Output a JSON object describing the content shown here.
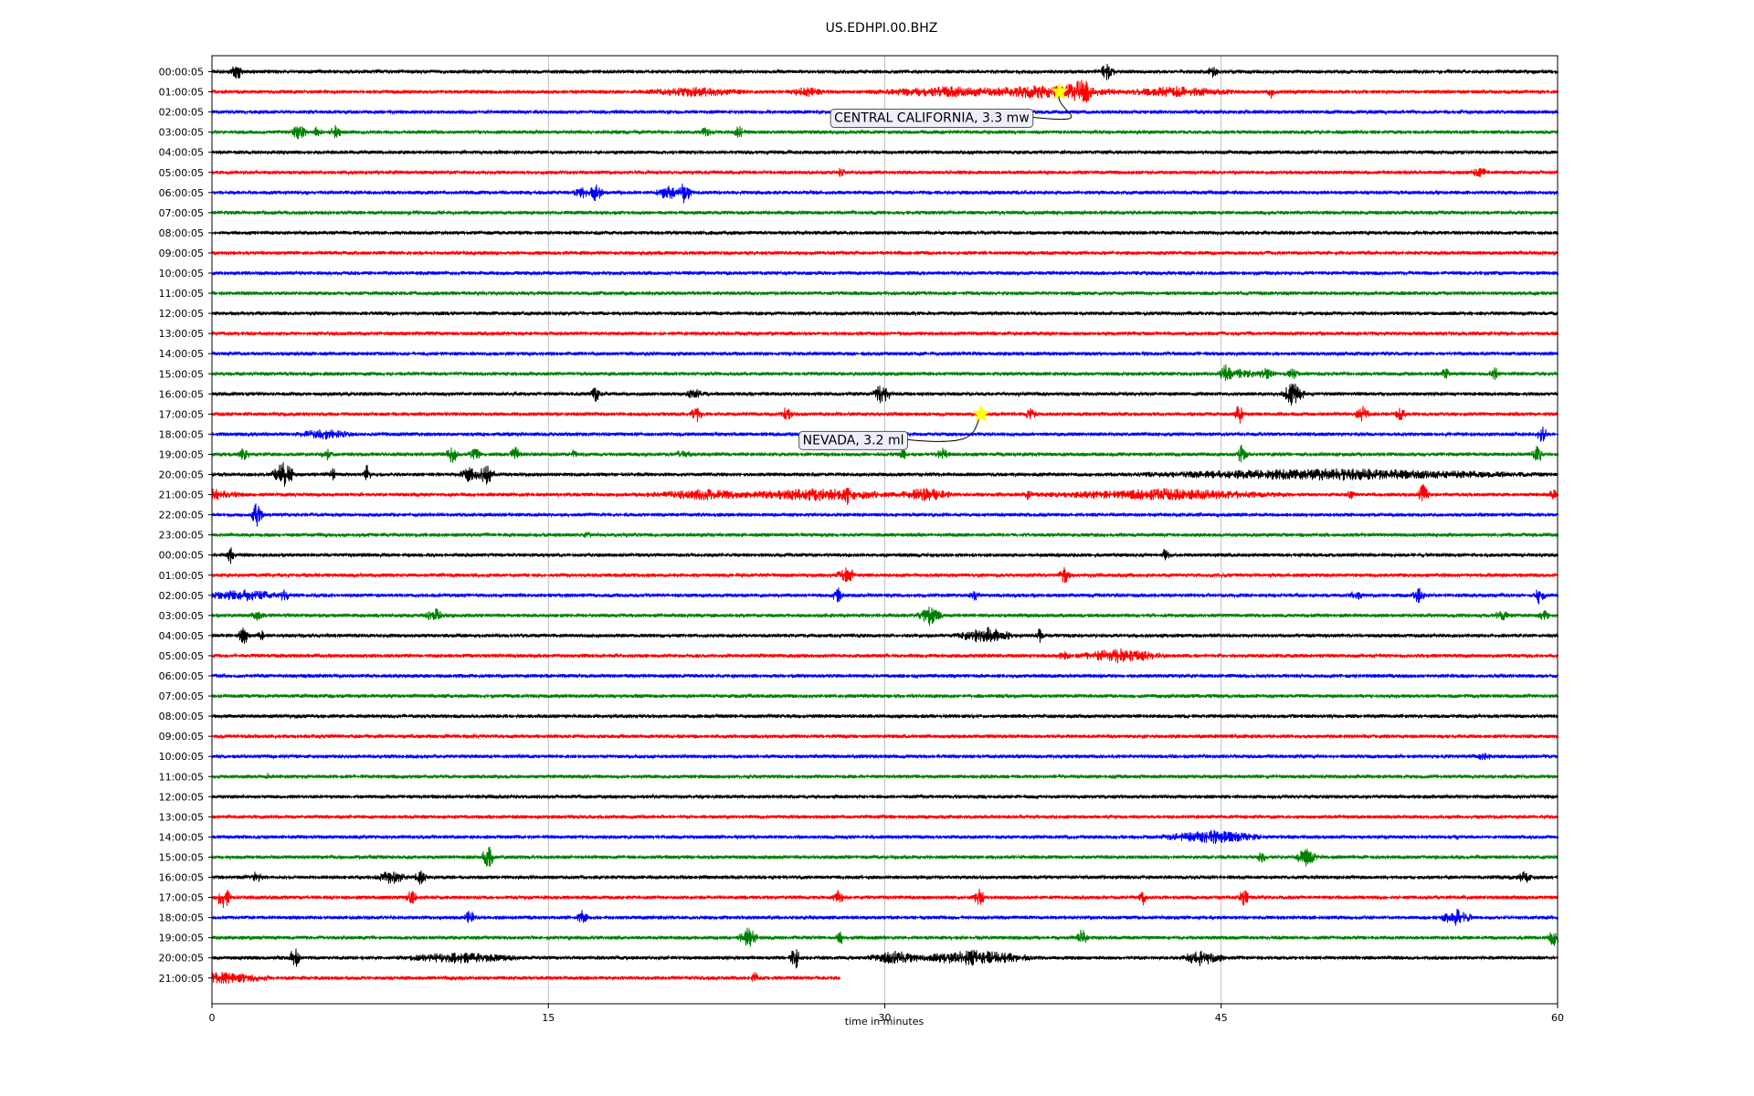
{
  "chart_data": {
    "type": "line",
    "title": "US.EDHPI.00.BHZ",
    "xlabel": "time in minutes",
    "xlim": [
      0,
      60
    ],
    "xticks": [
      0,
      15,
      30,
      45,
      60
    ],
    "grid": "vertical at major ticks",
    "trace_colors": [
      "#000000",
      "#ff0000",
      "#0000ff",
      "#008000"
    ],
    "row_labels": [
      "00:00:05",
      "01:00:05",
      "02:00:05",
      "03:00:05",
      "04:00:05",
      "05:00:05",
      "06:00:05",
      "07:00:05",
      "08:00:05",
      "09:00:05",
      "10:00:05",
      "11:00:05",
      "12:00:05",
      "13:00:05",
      "14:00:05",
      "15:00:05",
      "16:00:05",
      "17:00:05",
      "18:00:05",
      "19:00:05",
      "20:00:05",
      "21:00:05",
      "22:00:05",
      "23:00:05",
      "00:00:05",
      "01:00:05",
      "02:00:05",
      "03:00:05",
      "04:00:05",
      "05:00:05",
      "06:00:05",
      "07:00:05",
      "08:00:05",
      "09:00:05",
      "10:00:05",
      "11:00:05",
      "12:00:05",
      "13:00:05",
      "14:00:05",
      "15:00:05",
      "16:00:05",
      "17:00:05",
      "18:00:05",
      "19:00:05",
      "20:00:05",
      "21:00:05"
    ],
    "last_row_end_minute": 28,
    "events": [
      {
        "label": "CENTRAL CALIFORNIA, 3.3 mw",
        "row": 1,
        "minute": 37.8,
        "marker_color": "#ffff00"
      },
      {
        "label": "NEVADA, 3.2 ml",
        "row": 17,
        "minute": 34.3,
        "marker_color": "#ffff00"
      }
    ],
    "bursts": [
      [
        [
          1.1,
          0.3,
          0.9
        ],
        [
          39.9,
          0.4,
          0.8
        ],
        [
          44.6,
          0.3,
          0.5
        ]
      ],
      [
        [
          21.5,
          2.5,
          0.4
        ],
        [
          26.5,
          1,
          0.4
        ],
        [
          33,
          4,
          0.45
        ],
        [
          37,
          4,
          0.6
        ],
        [
          38.7,
          1,
          1.4
        ],
        [
          43,
          3,
          0.45
        ],
        [
          47.2,
          0.2,
          0.6
        ]
      ],
      [],
      [
        [
          3.9,
          0.4,
          0.8
        ],
        [
          4.7,
          0.3,
          0.5
        ],
        [
          5.5,
          0.3,
          0.6
        ],
        [
          22,
          0.3,
          0.4
        ],
        [
          23.5,
          0.3,
          0.6
        ]
      ],
      [],
      [
        [
          28,
          0.3,
          0.4
        ],
        [
          56.5,
          0.5,
          0.4
        ]
      ],
      [
        [
          16.5,
          0.5,
          0.5
        ],
        [
          17.1,
          0.4,
          1.0
        ],
        [
          20.3,
          0.6,
          0.7
        ],
        [
          21,
          0.4,
          1.2
        ]
      ],
      [],
      [],
      [],
      [],
      [],
      [],
      [],
      [],
      [
        [
          45.2,
          0.4,
          1.0
        ],
        [
          46,
          0.6,
          0.5
        ],
        [
          47,
          0.5,
          0.5
        ],
        [
          48.2,
          0.3,
          0.5
        ],
        [
          55,
          0.2,
          0.6
        ],
        [
          57.2,
          0.3,
          0.6
        ]
      ],
      [
        [
          17.1,
          0.3,
          0.7
        ],
        [
          21.5,
          0.6,
          0.4
        ],
        [
          29.9,
          0.5,
          1.1
        ],
        [
          48.2,
          0.6,
          1.3
        ]
      ],
      [
        [
          21.6,
          0.3,
          0.8
        ],
        [
          25.6,
          0.3,
          0.7
        ],
        [
          36.5,
          0.3,
          0.6
        ],
        [
          45.8,
          0.3,
          1.0
        ],
        [
          51.3,
          0.4,
          0.8
        ],
        [
          53,
          0.3,
          0.6
        ]
      ],
      [
        [
          5,
          1.5,
          0.4
        ],
        [
          59.3,
          0.3,
          0.9
        ]
      ],
      [
        [
          1.4,
          0.3,
          0.9
        ],
        [
          5.1,
          0.3,
          0.6
        ],
        [
          10.7,
          0.3,
          0.9
        ],
        [
          11.7,
          0.3,
          0.8
        ],
        [
          13.5,
          0.3,
          0.8
        ],
        [
          16.1,
          0.2,
          0.5
        ],
        [
          21,
          0.4,
          0.5
        ],
        [
          30.8,
          0.3,
          0.5
        ],
        [
          32.6,
          0.4,
          0.6
        ],
        [
          45.9,
          0.3,
          0.9
        ],
        [
          59.1,
          0.3,
          0.9
        ]
      ],
      [
        [
          3.2,
          0.6,
          1.3
        ],
        [
          5.4,
          0.2,
          0.8
        ],
        [
          6.9,
          0.2,
          1.0
        ],
        [
          11.5,
          0.5,
          0.8
        ],
        [
          12.2,
          0.5,
          1.0
        ],
        [
          50,
          10,
          0.5
        ]
      ],
      [
        [
          0,
          1.5,
          0.5
        ],
        [
          22,
          3,
          0.45
        ],
        [
          27,
          4,
          0.55
        ],
        [
          28.3,
          0.2,
          1.0
        ],
        [
          31.8,
          1.5,
          0.6
        ],
        [
          36.4,
          0.2,
          0.6
        ],
        [
          42.5,
          6,
          0.5
        ],
        [
          50.8,
          0.2,
          0.6
        ],
        [
          54,
          0.3,
          1.1
        ],
        [
          59.8,
          0.2,
          0.8
        ]
      ],
      [
        [
          2,
          0.3,
          1.4
        ]
      ],
      [
        [
          16.7,
          0.2,
          0.4
        ]
      ],
      [
        [
          0.8,
          0.2,
          0.9
        ],
        [
          42.5,
          0.2,
          0.6
        ]
      ],
      [
        [
          28.3,
          0.5,
          0.9
        ],
        [
          38,
          0.3,
          0.8
        ]
      ],
      [
        [
          1.4,
          2,
          0.5
        ],
        [
          3.2,
          0.3,
          0.6
        ],
        [
          27.9,
          0.3,
          0.8
        ],
        [
          34,
          0.3,
          0.5
        ],
        [
          51,
          0.3,
          0.6
        ],
        [
          53.8,
          0.3,
          1.1
        ],
        [
          59.2,
          0.3,
          1.0
        ]
      ],
      [
        [
          2,
          0.4,
          0.4
        ],
        [
          9.9,
          0.5,
          0.8
        ],
        [
          32,
          0.6,
          1.0
        ],
        [
          57.5,
          0.5,
          0.4
        ],
        [
          59.4,
          0.3,
          0.5
        ]
      ],
      [
        [
          1.4,
          0.3,
          0.9
        ],
        [
          2.2,
          0.2,
          0.6
        ],
        [
          34.5,
          1.5,
          0.8
        ],
        [
          36.9,
          0.2,
          0.7
        ]
      ],
      [
        [
          38,
          0.3,
          0.5
        ],
        [
          40.5,
          2.2,
          0.7
        ]
      ],
      [],
      [],
      [],
      [],
      [
        [
          56.7,
          0.4,
          0.4
        ]
      ],
      [
        [
          2.5,
          0.2,
          0.4
        ]
      ],
      [],
      [],
      [
        [
          44.6,
          2.6,
          0.6
        ]
      ],
      [
        [
          12.3,
          0.3,
          1.3
        ],
        [
          46.8,
          0.3,
          0.5
        ],
        [
          48.8,
          0.6,
          0.9
        ]
      ],
      [
        [
          2,
          0.3,
          0.6
        ],
        [
          8,
          0.8,
          0.7
        ],
        [
          9.3,
          0.3,
          0.8
        ],
        [
          58.5,
          0.4,
          0.6
        ]
      ],
      [
        [
          0.5,
          0.4,
          1.3
        ],
        [
          8.9,
          0.3,
          0.9
        ],
        [
          27.9,
          0.3,
          0.7
        ],
        [
          34.2,
          0.3,
          0.9
        ],
        [
          41.5,
          0.2,
          0.7
        ],
        [
          46,
          0.3,
          0.8
        ]
      ],
      [
        [
          11.5,
          0.3,
          0.7
        ],
        [
          16.5,
          0.3,
          0.7
        ],
        [
          55.5,
          0.8,
          0.8
        ]
      ],
      [
        [
          23.9,
          0.5,
          1.0
        ],
        [
          28,
          0.2,
          0.8
        ],
        [
          38.8,
          0.3,
          0.9
        ],
        [
          59.8,
          0.3,
          0.9
        ]
      ],
      [
        [
          3.7,
          0.3,
          1.2
        ],
        [
          11,
          3,
          0.45
        ],
        [
          26,
          0.3,
          1.1
        ],
        [
          30.5,
          1.5,
          0.6
        ],
        [
          34,
          3,
          0.7
        ],
        [
          44.2,
          1,
          0.9
        ]
      ],
      [
        [
          0.5,
          2.5,
          0.5
        ],
        [
          24.2,
          0.3,
          0.5
        ]
      ]
    ]
  }
}
